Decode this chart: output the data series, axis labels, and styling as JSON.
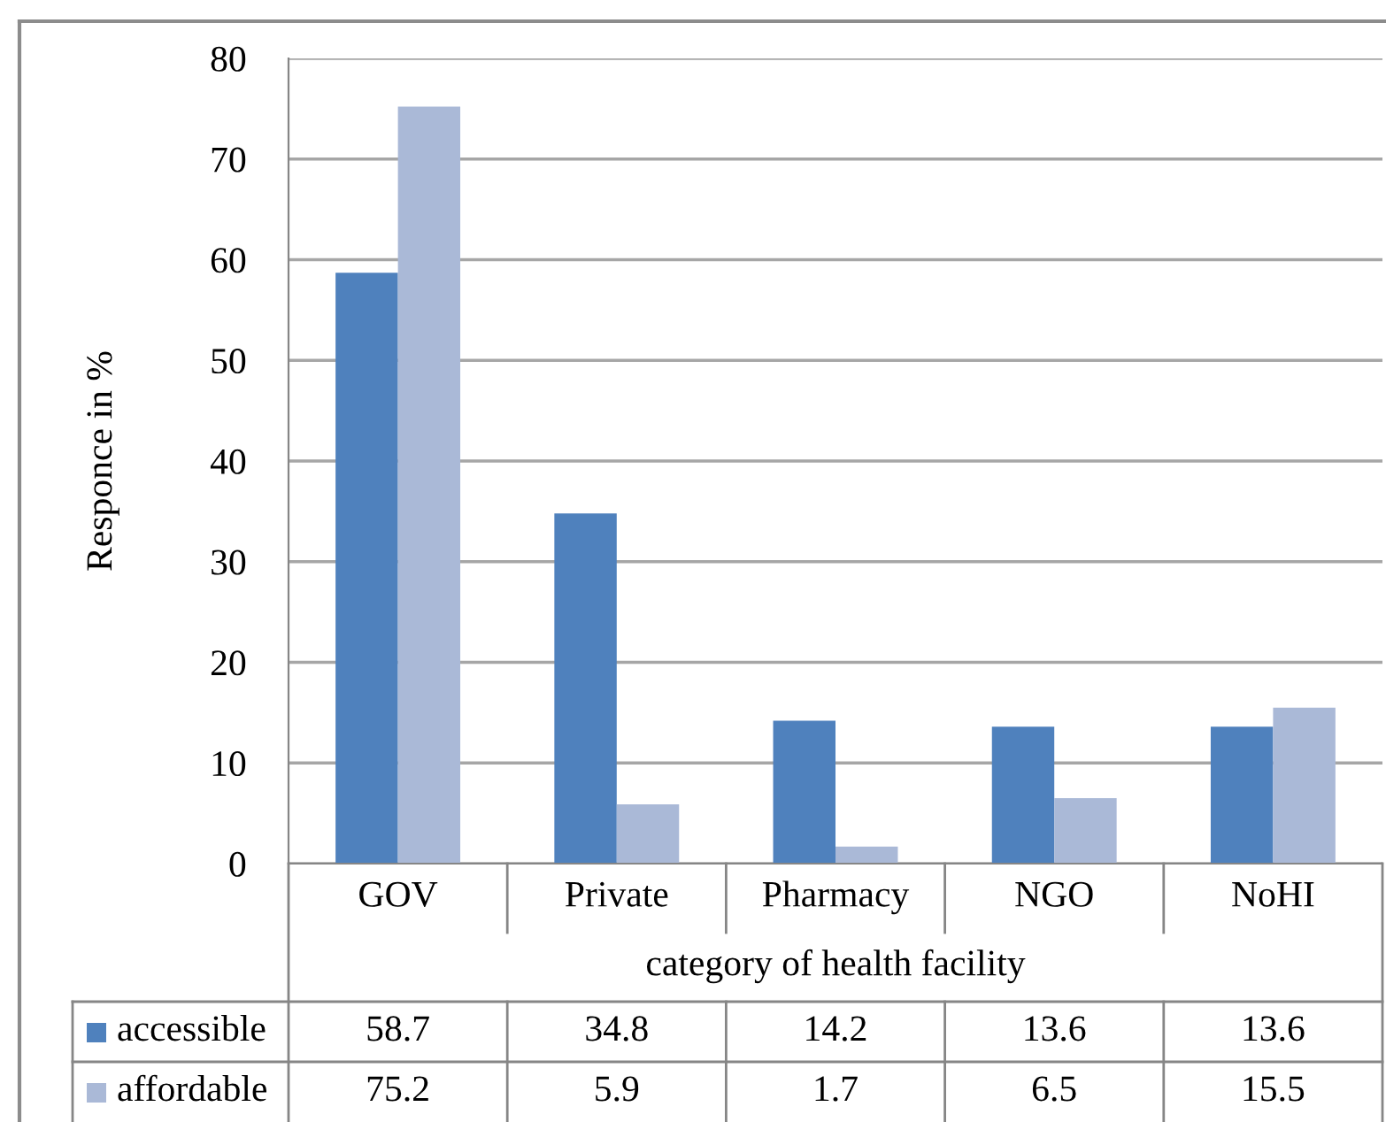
{
  "chart_data": {
    "type": "bar",
    "ylabel": "Responce in %",
    "xlabel": "category of health facility",
    "categories": [
      "GOV",
      "Private",
      "Pharmacy",
      "NGO",
      "NoHI"
    ],
    "series": [
      {
        "name": "accessible",
        "color": "#4f81bd",
        "values": [
          58.7,
          34.8,
          14.2,
          13.6,
          13.6
        ]
      },
      {
        "name": "affordable",
        "color": "#aab9d7",
        "values": [
          75.2,
          5.9,
          1.7,
          6.5,
          15.5
        ]
      }
    ],
    "ylim": [
      0,
      80
    ],
    "yticks": [
      0,
      10,
      20,
      30,
      40,
      50,
      60,
      70,
      80
    ],
    "grid": "y",
    "data_labels": true,
    "legend": "bottom left"
  }
}
